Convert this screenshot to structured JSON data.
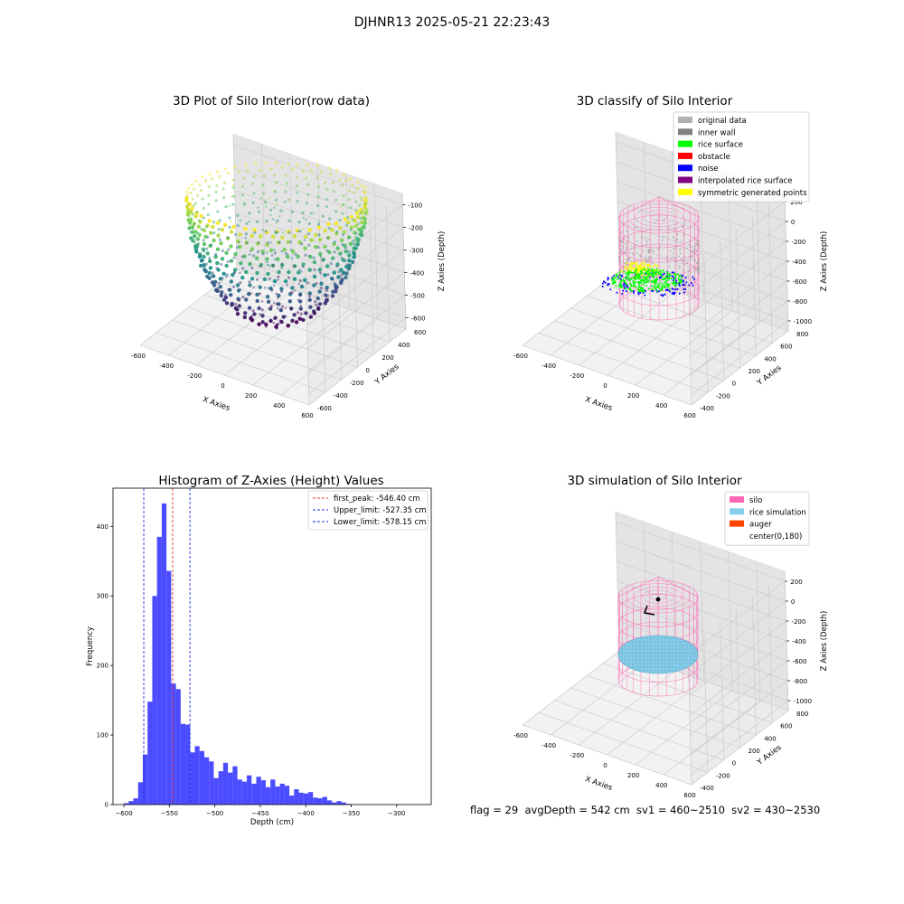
{
  "figure": {
    "suptitle": "DJHNR13 2025-05-21 22:23:43",
    "footer": "flag = 29  avgDepth = 542 cm  sv1 = 460~2510  sv2 = 430~2530"
  },
  "colors": {
    "hist_bar": "#4b4bff",
    "first_peak_line": "#e0392b",
    "limit_line": "#1f2be0",
    "silo": "#ff69b4",
    "rice_sim": "#87ceeb",
    "auger": "#ff4500"
  },
  "chart_data": [
    {
      "id": "raw",
      "type": "scatter3d",
      "title": "3D Plot of Silo Interior(row data)",
      "xlabel": "X Axies",
      "ylabel": "Y Axies",
      "zlabel": "Z Axies (Depth)",
      "xticks": [
        "-600",
        "-400",
        "-200",
        "0",
        "200",
        "400",
        "600"
      ],
      "yticks": [
        "-600",
        "-400",
        "-200",
        "0",
        "200",
        "400",
        "600"
      ],
      "zticks": [
        "-100",
        "-200",
        "-300",
        "-400",
        "-500",
        "-600"
      ],
      "colormap": "viridis",
      "bowl": {
        "rim_radius": 500,
        "z_top": -100,
        "z_bottom": -580
      }
    },
    {
      "id": "classify",
      "type": "scatter3d",
      "title": "3D classify of Silo Interior",
      "xlabel": "X Axies",
      "ylabel": "Y Axies",
      "zlabel": "Z Axies (Depth)",
      "xticks": [
        "-600",
        "-400",
        "-200",
        "0",
        "200",
        "400",
        "600"
      ],
      "yticks": [
        "-400",
        "-200",
        "0",
        "200",
        "400",
        "600",
        "800"
      ],
      "zticks": [
        "200",
        "0",
        "-200",
        "-400",
        "-600",
        "-800",
        "-1000"
      ],
      "legend_position": "upper right",
      "legend": [
        {
          "label": "original data",
          "color": "#b0b0b0"
        },
        {
          "label": "inner wall",
          "color": "#808080"
        },
        {
          "label": "rice surface",
          "color": "#00ff00"
        },
        {
          "label": "obstacle",
          "color": "#ff0000"
        },
        {
          "label": "noise",
          "color": "#0000ff"
        },
        {
          "label": "interpolated rice surface",
          "color": "#800080"
        },
        {
          "label": "symmetric generated points",
          "color": "#ffff00"
        }
      ]
    },
    {
      "id": "histogram",
      "type": "bar",
      "title": "Histogram of Z-Axies (Height) Values",
      "xlabel": "Depth (cm)",
      "ylabel": "Frequency",
      "xlim": [
        -612,
        -262
      ],
      "ylim": [
        0,
        455
      ],
      "xticks": [
        -600,
        -550,
        -500,
        -450,
        -400,
        -350,
        -300
      ],
      "yticks": [
        0,
        100,
        200,
        300,
        400
      ],
      "bin_edges_start": -600,
      "bin_width": 5.2,
      "values": [
        2,
        5,
        9,
        32,
        72,
        148,
        300,
        385,
        433,
        336,
        174,
        166,
        116,
        115,
        75,
        84,
        77,
        68,
        62,
        38,
        48,
        60,
        46,
        55,
        36,
        33,
        42,
        30,
        40,
        35,
        25,
        36,
        26,
        30,
        27,
        13,
        22,
        17,
        16,
        18,
        10,
        9,
        11,
        6,
        3,
        5,
        3,
        1
      ],
      "vlines": [
        {
          "label": "first_peak: -546.40 cm",
          "x": -546.4,
          "colorKey": "first_peak_line"
        },
        {
          "label": "Upper_limit: -527.35 cm",
          "x": -527.35,
          "colorKey": "limit_line"
        },
        {
          "label": "Lower_limit: -578.15 cm",
          "x": -578.15,
          "colorKey": "limit_line"
        }
      ],
      "legend_position": "upper right"
    },
    {
      "id": "simulation",
      "type": "surface3d",
      "title": "3D simulation of Silo Interior",
      "xlabel": "X Axies",
      "ylabel": "Y Axies",
      "zlabel": "Z Axies (Depth)",
      "xticks": [
        "-600",
        "-400",
        "-200",
        "0",
        "200",
        "400",
        "600"
      ],
      "yticks": [
        "-400",
        "-200",
        "0",
        "200",
        "400",
        "600",
        "800"
      ],
      "zticks": [
        "200",
        "0",
        "-200",
        "-400",
        "-600",
        "-800",
        "-1000"
      ],
      "legend_position": "upper right",
      "legend": [
        {
          "label": "silo",
          "color": "#ff69b4"
        },
        {
          "label": "rice simulation",
          "color": "#87ceeb"
        },
        {
          "label": "auger",
          "color": "#ff4500"
        },
        {
          "label": "center(0,180)",
          "color": ""
        }
      ]
    }
  ]
}
